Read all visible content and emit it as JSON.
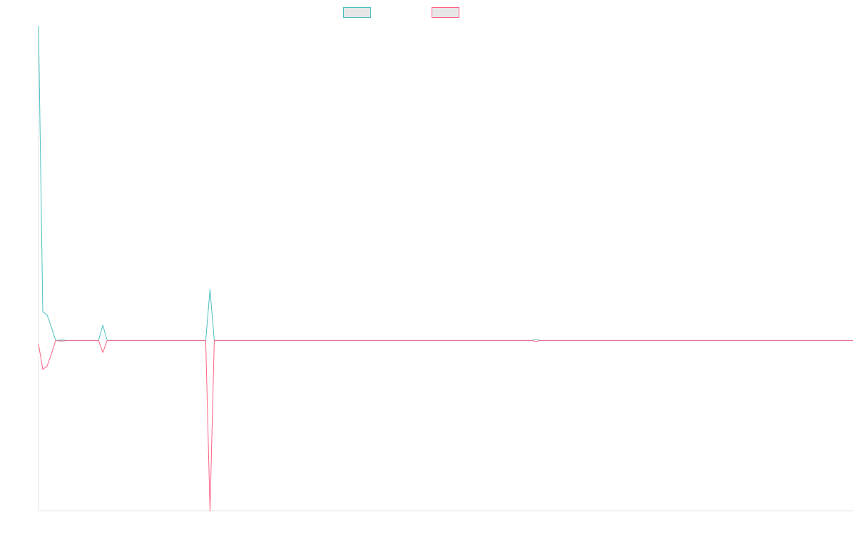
{
  "chart_data": {
    "type": "line",
    "title": "",
    "xlabel": "",
    "ylabel": "",
    "legend_position": "top-center",
    "grid": false,
    "xlim": [
      0,
      190
    ],
    "ylim": [
      -1,
      1.85
    ],
    "series": [
      {
        "color": "#4bc0c0",
        "points": [
          [
            0,
            1.85
          ],
          [
            1,
            0.17
          ],
          [
            2,
            0.15
          ],
          [
            3,
            0.08
          ],
          [
            4,
            0
          ],
          [
            5,
            0.003
          ],
          [
            6,
            0.002
          ],
          [
            7,
            0
          ],
          [
            8,
            0
          ],
          [
            14,
            0
          ],
          [
            15,
            0.09
          ],
          [
            16,
            0
          ],
          [
            17,
            0
          ],
          [
            39,
            0
          ],
          [
            40,
            0.3
          ],
          [
            41,
            0
          ],
          [
            42,
            0
          ],
          [
            115,
            0
          ],
          [
            116,
            0.007
          ],
          [
            117,
            0
          ],
          [
            190,
            0
          ]
        ]
      },
      {
        "color": "#ff6384",
        "points": [
          [
            0,
            -0.02
          ],
          [
            1,
            -0.17
          ],
          [
            2,
            -0.15
          ],
          [
            3,
            -0.08
          ],
          [
            4,
            0
          ],
          [
            5,
            -0.003
          ],
          [
            6,
            -0.002
          ],
          [
            7,
            0
          ],
          [
            8,
            0
          ],
          [
            14,
            0
          ],
          [
            15,
            -0.07
          ],
          [
            16,
            0
          ],
          [
            17,
            0
          ],
          [
            39,
            0
          ],
          [
            40,
            -1
          ],
          [
            41,
            0
          ],
          [
            42,
            0
          ],
          [
            115,
            0
          ],
          [
            116,
            -0.006
          ],
          [
            117,
            0
          ],
          [
            190,
            0
          ]
        ]
      }
    ]
  }
}
